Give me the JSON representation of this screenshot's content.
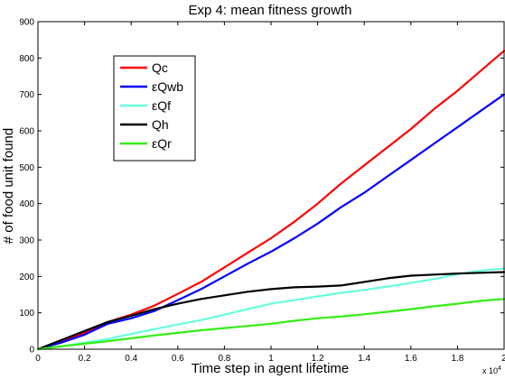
{
  "chart_data": {
    "type": "line",
    "title": "Exp 4: mean fitness growth",
    "xlabel": "Time step in agent lifetime",
    "ylabel": "# of food unit found",
    "x_multiplier": "x 10",
    "x_multiplier_exp": "4",
    "xlim": [
      0,
      20000
    ],
    "ylim": [
      0,
      900
    ],
    "x_ticks": [
      0,
      2000,
      4000,
      6000,
      8000,
      10000,
      12000,
      14000,
      16000,
      18000,
      20000
    ],
    "x_tick_labels": [
      "0",
      "0.2",
      "0.4",
      "0.6",
      "0.8",
      "1",
      "1.2",
      "1.4",
      "1.6",
      "1.8",
      "2"
    ],
    "y_ticks": [
      0,
      100,
      200,
      300,
      400,
      500,
      600,
      700,
      800,
      900
    ],
    "y_tick_labels": [
      "0",
      "100",
      "200",
      "300",
      "400",
      "500",
      "600",
      "700",
      "800",
      "900"
    ],
    "grid": false,
    "legend_position": "top-left",
    "series": [
      {
        "name": "Qc",
        "color": "#ff0000",
        "x": [
          0,
          1000,
          2000,
          3000,
          4000,
          5000,
          6000,
          7000,
          8000,
          9000,
          10000,
          11000,
          12000,
          13000,
          14000,
          15000,
          16000,
          17000,
          18000,
          19000,
          20000
        ],
        "y": [
          0,
          22,
          45,
          75,
          95,
          120,
          152,
          185,
          225,
          265,
          305,
          350,
          400,
          455,
          505,
          555,
          605,
          660,
          710,
          765,
          820
        ]
      },
      {
        "name": "εQwb",
        "color": "#0000ff",
        "x": [
          0,
          1000,
          2000,
          3000,
          4000,
          5000,
          6000,
          7000,
          8000,
          9000,
          10000,
          11000,
          12000,
          13000,
          14000,
          15000,
          16000,
          17000,
          18000,
          19000,
          20000
        ],
        "y": [
          0,
          18,
          40,
          70,
          85,
          105,
          135,
          165,
          200,
          235,
          268,
          305,
          345,
          390,
          430,
          475,
          520,
          565,
          610,
          655,
          700
        ]
      },
      {
        "name": "εQf",
        "color": "#66ffdd",
        "x": [
          0,
          1000,
          2000,
          3000,
          4000,
          5000,
          6000,
          7000,
          8000,
          9000,
          10000,
          11000,
          12000,
          13000,
          14000,
          15000,
          16000,
          17000,
          18000,
          19000,
          20000
        ],
        "y": [
          0,
          8,
          18,
          28,
          42,
          55,
          68,
          80,
          95,
          110,
          125,
          135,
          145,
          155,
          163,
          172,
          182,
          193,
          206,
          216,
          222
        ]
      },
      {
        "name": "Qh",
        "color": "#000000",
        "x": [
          0,
          1000,
          2000,
          3000,
          4000,
          5000,
          6000,
          7000,
          8000,
          9000,
          10000,
          11000,
          12000,
          13000,
          14000,
          15000,
          16000,
          17000,
          18000,
          19000,
          20000
        ],
        "y": [
          0,
          25,
          50,
          75,
          92,
          110,
          125,
          138,
          148,
          158,
          165,
          170,
          172,
          175,
          185,
          195,
          202,
          205,
          208,
          210,
          212
        ]
      },
      {
        "name": "εQr",
        "color": "#33ee11",
        "x": [
          0,
          1000,
          2000,
          3000,
          4000,
          5000,
          6000,
          7000,
          8000,
          9000,
          10000,
          11000,
          12000,
          13000,
          14000,
          15000,
          16000,
          17000,
          18000,
          19000,
          20000
        ],
        "y": [
          0,
          8,
          15,
          22,
          30,
          38,
          45,
          52,
          58,
          64,
          70,
          78,
          85,
          90,
          96,
          103,
          110,
          118,
          125,
          133,
          138
        ]
      }
    ]
  }
}
